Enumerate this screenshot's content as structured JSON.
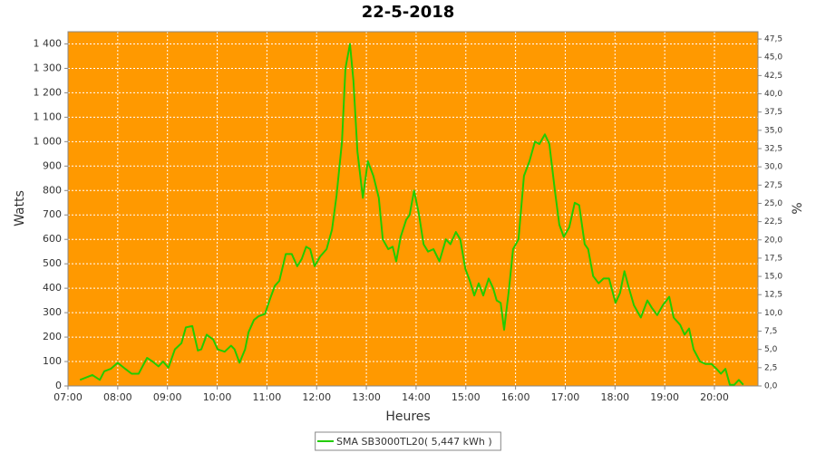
{
  "chart_data": {
    "type": "line",
    "title": "22-5-2018",
    "x_label": "Heures",
    "y_label": "Watts",
    "y2_label": "%",
    "x": [
      7.24,
      7.49,
      7.64,
      7.73,
      7.86,
      8.0,
      8.15,
      8.28,
      8.42,
      8.59,
      8.7,
      8.82,
      8.91,
      9.02,
      9.15,
      9.28,
      9.37,
      9.5,
      9.61,
      9.68,
      9.79,
      9.92,
      10.01,
      10.15,
      10.28,
      10.35,
      10.45,
      10.56,
      10.63,
      10.74,
      10.83,
      10.96,
      11.07,
      11.16,
      11.25,
      11.38,
      11.5,
      11.61,
      11.7,
      11.79,
      11.87,
      11.96,
      12.07,
      12.2,
      12.31,
      12.4,
      12.51,
      12.58,
      12.67,
      12.74,
      12.82,
      12.93,
      13.03,
      13.14,
      13.25,
      13.33,
      13.44,
      13.53,
      13.6,
      13.69,
      13.8,
      13.87,
      13.96,
      14.06,
      14.15,
      14.24,
      14.35,
      14.47,
      14.6,
      14.69,
      14.8,
      14.89,
      14.99,
      15.08,
      15.17,
      15.26,
      15.35,
      15.46,
      15.55,
      15.62,
      15.7,
      15.77,
      15.86,
      15.95,
      16.06,
      16.17,
      16.28,
      16.39,
      16.48,
      16.59,
      16.68,
      16.79,
      16.88,
      16.97,
      17.08,
      17.19,
      17.28,
      17.39,
      17.46,
      17.56,
      17.67,
      17.77,
      17.88,
      18.01,
      18.1,
      18.19,
      18.28,
      18.38,
      18.52,
      18.65,
      18.74,
      18.85,
      18.96,
      19.09,
      19.18,
      19.31,
      19.4,
      19.49,
      19.58,
      19.71,
      19.82,
      19.94,
      20.04,
      20.13,
      20.22,
      20.31,
      20.4,
      20.49,
      20.58
    ],
    "series": [
      {
        "name": "SMA SB3000TL20( 5,447 kWh )",
        "color": "#22cc00",
        "values": [
          25,
          45,
          25,
          60,
          70,
          95,
          70,
          50,
          50,
          115,
          100,
          80,
          100,
          75,
          150,
          175,
          240,
          245,
          145,
          150,
          210,
          190,
          150,
          140,
          165,
          150,
          95,
          150,
          220,
          270,
          285,
          295,
          360,
          410,
          430,
          540,
          540,
          490,
          520,
          570,
          560,
          490,
          530,
          560,
          640,
          780,
          1000,
          1300,
          1400,
          1250,
          960,
          770,
          920,
          860,
          770,
          600,
          560,
          570,
          510,
          610,
          680,
          700,
          800,
          700,
          580,
          550,
          560,
          510,
          600,
          580,
          630,
          600,
          480,
          430,
          370,
          420,
          370,
          440,
          400,
          350,
          340,
          230,
          380,
          560,
          600,
          860,
          920,
          1000,
          990,
          1030,
          990,
          800,
          660,
          610,
          650,
          750,
          740,
          580,
          560,
          450,
          420,
          440,
          440,
          340,
          380,
          470,
          400,
          330,
          280,
          350,
          320,
          290,
          330,
          365,
          280,
          250,
          210,
          235,
          150,
          100,
          90,
          90,
          70,
          50,
          70,
          5,
          5,
          25,
          5
        ]
      }
    ],
    "xlim": [
      7,
      20.875
    ],
    "xticks": [
      {
        "value": 7,
        "label": "07:00"
      },
      {
        "value": 8,
        "label": "08:00"
      },
      {
        "value": 9,
        "label": "09:00"
      },
      {
        "value": 10,
        "label": "10:00"
      },
      {
        "value": 11,
        "label": "11:00"
      },
      {
        "value": 12,
        "label": "12:00"
      },
      {
        "value": 13,
        "label": "13:00"
      },
      {
        "value": 14,
        "label": "14:00"
      },
      {
        "value": 15,
        "label": "15:00"
      },
      {
        "value": 16,
        "label": "16:00"
      },
      {
        "value": 17,
        "label": "17:00"
      },
      {
        "value": 18,
        "label": "18:00"
      },
      {
        "value": 19,
        "label": "19:00"
      },
      {
        "value": 20,
        "label": "20:00"
      }
    ],
    "ylim": [
      0,
      1450
    ],
    "yticks": [
      0,
      100,
      200,
      300,
      400,
      500,
      600,
      700,
      800,
      900,
      {
        "value": 1000,
        "label": "1 000"
      },
      {
        "value": 1100,
        "label": "1 100"
      },
      {
        "value": 1200,
        "label": "1 200"
      },
      {
        "value": 1300,
        "label": "1 300"
      },
      {
        "value": 1400,
        "label": "1 400"
      }
    ],
    "y2lim": [
      0,
      48.5
    ],
    "y2ticks": [
      {
        "value": 0,
        "label": "0,0"
      },
      {
        "value": 2.5,
        "label": "2,5"
      },
      {
        "value": 5,
        "label": "5,0"
      },
      {
        "value": 7.5,
        "label": "7,5"
      },
      {
        "value": 10,
        "label": "10,0"
      },
      {
        "value": 12.5,
        "label": "12,5"
      },
      {
        "value": 15,
        "label": "15,0"
      },
      {
        "value": 17.5,
        "label": "17,5"
      },
      {
        "value": 20,
        "label": "20,0"
      },
      {
        "value": 22.5,
        "label": "22,5"
      },
      {
        "value": 25,
        "label": "25,0"
      },
      {
        "value": 27.5,
        "label": "27,5"
      },
      {
        "value": 30,
        "label": "30,0"
      },
      {
        "value": 32.5,
        "label": "32,5"
      },
      {
        "value": 35,
        "label": "35,0"
      },
      {
        "value": 37.5,
        "label": "37,5"
      },
      {
        "value": 40,
        "label": "40,0"
      },
      {
        "value": 42.5,
        "label": "42,5"
      },
      {
        "value": 45,
        "label": "45,0"
      },
      {
        "value": 47.5,
        "label": "47,5"
      }
    ],
    "grid": true,
    "plot_background": "#ff9900",
    "legend": "bottom"
  }
}
